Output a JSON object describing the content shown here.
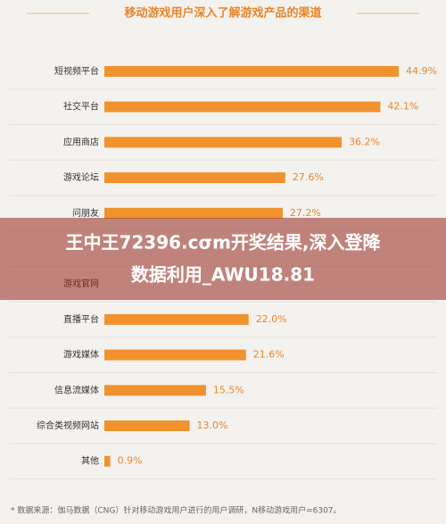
{
  "chart_data": {
    "type": "bar",
    "orientation": "horizontal",
    "title": "移动游戏用户深入了解游戏产品的渠道",
    "categories": [
      "短视频平台",
      "社交平台",
      "应用商店",
      "游戏论坛",
      "问朋友",
      null,
      "游戏官网",
      "直播平台",
      "游戏媒体",
      "信息流媒体",
      "综合类视频网站",
      "其他"
    ],
    "values": [
      44.9,
      42.1,
      36.2,
      27.6,
      27.2,
      null,
      null,
      22.0,
      21.6,
      15.5,
      13.0,
      0.9
    ],
    "value_labels": [
      "44.9%",
      "42.1%",
      "36.2%",
      "27.6%",
      "27.2%",
      null,
      null,
      "22.0%",
      "21.6%",
      "15.5%",
      "13.0%",
      "0.9%"
    ],
    "color": "#f0922e",
    "footnote": "* 数据来源：伽马数据（CNG）针对移动游戏用户进行的用户调研，N移动游戏用户=6307。"
  },
  "overlay": {
    "lines": [
      "王中王72396.cσm开奖结果,深入登降",
      "数据利用_AWU18.81"
    ]
  }
}
